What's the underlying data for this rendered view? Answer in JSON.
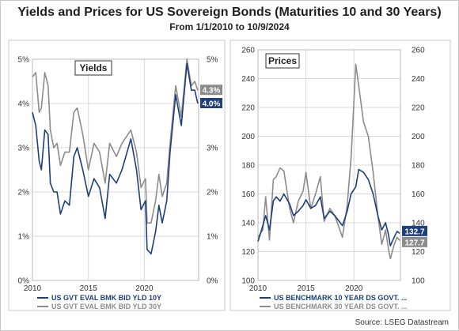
{
  "title": "Yields and Prices for US Sovereign Bonds (Maturities 10 and 30 Years)",
  "subtitle": "From 1/1/2010 to 10/9/2024",
  "source": "Source: LSEG Datastream",
  "colors": {
    "navy": "#1f3f7a",
    "gray": "#8c8c8c",
    "grid": "#d8d8d8",
    "frame": "#b8b8b8"
  },
  "chart_data": [
    {
      "type": "line",
      "panel_label": "Yields",
      "x_ticks": [
        "2010",
        "2015",
        "2020"
      ],
      "xlim": [
        2010.0,
        2024.85
      ],
      "y_ticks": [
        "0%",
        "1%",
        "2%",
        "3%",
        "4%",
        "5%"
      ],
      "ylim": [
        0,
        5
      ],
      "y_axis_sides": "both",
      "grid": true,
      "legend_position": "bottom-left",
      "end_labels": [
        "4.3%",
        "4.0%"
      ],
      "series": [
        {
          "name": "US GVT EVAL BMK BID YLD 10Y",
          "color": "#1f3f7a",
          "x": [
            2010.0,
            2010.3,
            2010.6,
            2010.8,
            2011.1,
            2011.4,
            2011.6,
            2011.9,
            2012.2,
            2012.5,
            2012.9,
            2013.3,
            2013.7,
            2014.0,
            2014.5,
            2015.0,
            2015.5,
            2016.0,
            2016.5,
            2016.9,
            2017.5,
            2018.0,
            2018.8,
            2019.3,
            2019.7,
            2020.1,
            2020.25,
            2020.6,
            2021.0,
            2021.3,
            2021.6,
            2022.0,
            2022.3,
            2022.8,
            2023.3,
            2023.8,
            2024.2,
            2024.5,
            2024.77
          ],
          "y": [
            3.8,
            3.5,
            2.7,
            2.5,
            3.4,
            3.3,
            2.2,
            2.0,
            2.0,
            1.5,
            1.8,
            1.7,
            2.8,
            3.0,
            2.5,
            1.9,
            2.3,
            2.1,
            1.4,
            2.4,
            2.2,
            2.5,
            3.2,
            2.5,
            1.6,
            1.8,
            0.7,
            0.6,
            1.1,
            1.7,
            1.3,
            1.8,
            2.9,
            4.2,
            3.5,
            4.9,
            4.3,
            4.3,
            4.0
          ]
        },
        {
          "name": "US GVT EVAL BMK BID YLD 30Y",
          "color": "#8c8c8c",
          "x": [
            2010.0,
            2010.3,
            2010.6,
            2010.8,
            2011.1,
            2011.4,
            2011.6,
            2011.9,
            2012.2,
            2012.5,
            2012.9,
            2013.3,
            2013.7,
            2014.0,
            2014.5,
            2015.0,
            2015.5,
            2016.0,
            2016.5,
            2016.9,
            2017.5,
            2018.0,
            2018.8,
            2019.3,
            2019.7,
            2020.1,
            2020.25,
            2020.6,
            2021.0,
            2021.3,
            2021.6,
            2022.0,
            2022.3,
            2022.8,
            2023.3,
            2023.8,
            2024.2,
            2024.5,
            2024.77
          ],
          "y": [
            4.6,
            4.7,
            3.8,
            3.9,
            4.7,
            4.4,
            3.4,
            3.0,
            3.1,
            2.6,
            2.9,
            2.9,
            3.8,
            3.9,
            3.3,
            2.5,
            3.1,
            2.9,
            2.2,
            3.1,
            2.8,
            3.1,
            3.4,
            2.9,
            2.1,
            2.3,
            1.3,
            1.3,
            1.8,
            2.4,
            1.9,
            2.2,
            3.1,
            4.4,
            3.7,
            5.0,
            4.4,
            4.5,
            4.3
          ]
        }
      ]
    },
    {
      "type": "line",
      "panel_label": "Prices",
      "x_ticks": [
        "2010",
        "2015",
        "2020"
      ],
      "xlim": [
        2010.0,
        2024.85
      ],
      "y_ticks": [
        "100",
        "120",
        "140",
        "160",
        "180",
        "200",
        "220",
        "240",
        "260"
      ],
      "ylim": [
        100,
        260
      ],
      "y_axis_sides": "both",
      "grid": true,
      "legend_position": "bottom-left",
      "end_labels": [
        "132.7",
        "127.7"
      ],
      "series": [
        {
          "name": "US BENCHMARK 10 YEAR DS GOVT. ...",
          "color": "#1f3f7a",
          "x": [
            2010.0,
            2010.5,
            2010.8,
            2011.2,
            2011.6,
            2011.9,
            2012.3,
            2012.7,
            2013.3,
            2013.7,
            2014.2,
            2014.7,
            2015.0,
            2015.5,
            2016.0,
            2016.5,
            2016.9,
            2017.5,
            2018.0,
            2018.8,
            2019.3,
            2019.7,
            2020.2,
            2020.5,
            2021.0,
            2021.5,
            2022.0,
            2022.5,
            2022.9,
            2023.3,
            2023.6,
            2023.8,
            2024.2,
            2024.5,
            2024.77
          ],
          "y": [
            127,
            138,
            145,
            135,
            155,
            158,
            155,
            160,
            153,
            145,
            148,
            152,
            156,
            150,
            152,
            158,
            143,
            148,
            145,
            138,
            148,
            160,
            165,
            177,
            175,
            170,
            160,
            145,
            135,
            140,
            132,
            124,
            130,
            134,
            132.7
          ]
        },
        {
          "name": "US BENCHMARK 30 YEAR DS GOVT. ...",
          "color": "#8c8c8c",
          "x": [
            2010.0,
            2010.5,
            2010.8,
            2011.2,
            2011.6,
            2011.9,
            2012.3,
            2012.7,
            2013.3,
            2013.7,
            2014.2,
            2014.7,
            2015.0,
            2015.5,
            2016.0,
            2016.5,
            2016.9,
            2017.5,
            2018.0,
            2018.8,
            2019.3,
            2019.7,
            2020.2,
            2020.5,
            2021.0,
            2021.5,
            2022.0,
            2022.5,
            2022.9,
            2023.3,
            2023.6,
            2023.8,
            2024.2,
            2024.5,
            2024.77
          ],
          "y": [
            130,
            135,
            158,
            128,
            170,
            172,
            178,
            176,
            150,
            140,
            155,
            162,
            175,
            150,
            160,
            172,
            141,
            150,
            145,
            130,
            152,
            185,
            250,
            235,
            210,
            200,
            175,
            145,
            125,
            135,
            122,
            115,
            125,
            130,
            127.7
          ]
        }
      ]
    }
  ]
}
